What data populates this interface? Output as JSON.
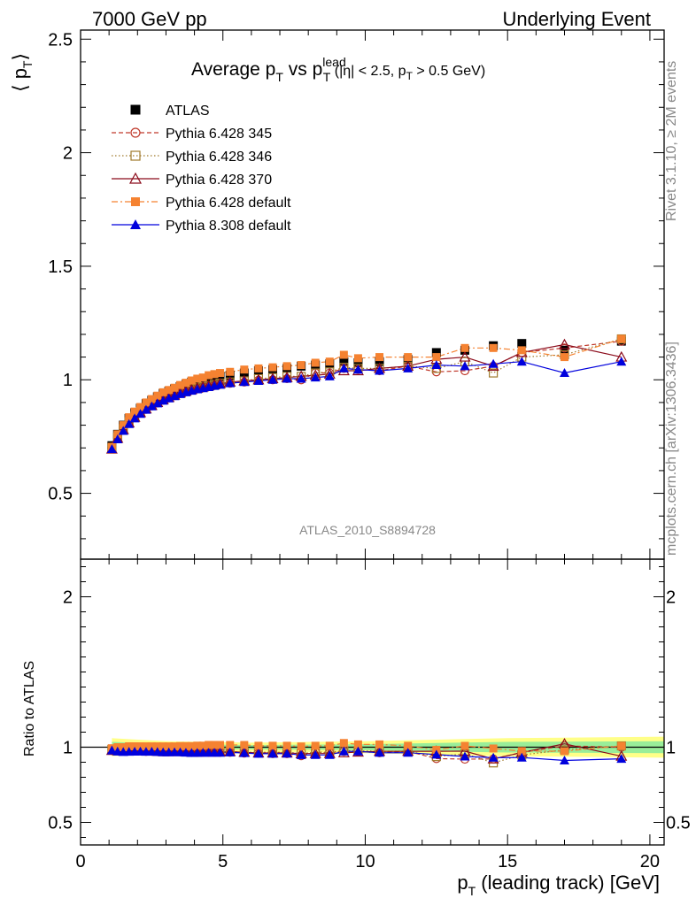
{
  "header": {
    "left": "7000 GeV pp",
    "right": "Underlying Event"
  },
  "title": {
    "main": "Average p",
    "sub1": "T",
    "vs": " vs p",
    "sup2": "lead",
    "sub2": "T",
    "cuts": " (|η| < 2.5, p",
    "cuts_sub": "T",
    "cuts_end": " > 0.5 GeV)"
  },
  "side_text": {
    "right_top": "Rivet 3.1.10, ≥ 2M events",
    "right_bottom": "mcplots.cern.ch [arXiv:1306.3436]"
  },
  "watermark": "ATLAS_2010_S8894728",
  "y_label_top": {
    "open": "⟨ p",
    "sub": "T",
    "close": "⟩"
  },
  "y_label_bottom": "Ratio to ATLAS",
  "x_label": {
    "p": "p",
    "sub": "T",
    "rest": " (leading track) [GeV]"
  },
  "chart_data": {
    "type": "scatter",
    "x_axis": {
      "range": [
        0,
        20.5
      ],
      "ticks": [
        0,
        5,
        10,
        15,
        20
      ],
      "tick_labels": [
        "0",
        "5",
        "10",
        "15",
        "20"
      ]
    },
    "main": {
      "y_range": [
        0.21,
        2.54
      ],
      "y_ticks": [
        0.5,
        1,
        1.5,
        2,
        2.5
      ],
      "y_tick_labels": [
        "0.5",
        "1",
        "1.5",
        "2",
        "2.5"
      ]
    },
    "ratio": {
      "y_range": [
        0.35,
        2.25
      ],
      "y_ticks": [
        0.5,
        1,
        2
      ],
      "y_tick_labels": [
        "0.5",
        "1",
        "2"
      ],
      "band_yellow": [
        [
          1.1,
          0.06
        ],
        [
          3,
          0.04
        ],
        [
          6,
          0.03
        ],
        [
          10,
          0.04
        ],
        [
          15,
          0.06
        ],
        [
          20.5,
          0.07
        ]
      ],
      "band_green": [
        [
          1.1,
          0.035
        ],
        [
          3,
          0.02
        ],
        [
          6,
          0.015
        ],
        [
          10,
          0.02
        ],
        [
          15,
          0.035
        ],
        [
          20.5,
          0.04
        ]
      ]
    },
    "x": [
      1.1,
      1.3,
      1.5,
      1.7,
      1.9,
      2.1,
      2.3,
      2.5,
      2.7,
      2.9,
      3.1,
      3.3,
      3.5,
      3.7,
      3.9,
      4.1,
      4.3,
      4.5,
      4.7,
      4.9,
      5.25,
      5.75,
      6.25,
      6.75,
      7.25,
      7.75,
      8.25,
      8.75,
      9.25,
      9.75,
      10.5,
      11.5,
      12.5,
      13.5,
      14.5,
      15.5,
      17.0,
      19.0
    ],
    "series": [
      {
        "name": "ATLAS",
        "color": "#000000",
        "line": "none",
        "marker": "filled-square",
        "values": [
          0.71,
          0.76,
          0.8,
          0.83,
          0.855,
          0.875,
          0.895,
          0.91,
          0.925,
          0.94,
          0.95,
          0.96,
          0.97,
          0.98,
          0.99,
          0.995,
          1.0,
          1.005,
          1.01,
          1.015,
          1.02,
          1.03,
          1.04,
          1.045,
          1.05,
          1.06,
          1.065,
          1.07,
          1.08,
          1.075,
          1.08,
          1.09,
          1.12,
          1.13,
          1.15,
          1.16,
          1.13,
          1.17
        ]
      },
      {
        "name": "Pythia 6.428 345",
        "color": "#c0392b",
        "line": "dashed",
        "marker": "open-circle",
        "values": [
          0.7,
          0.745,
          0.78,
          0.81,
          0.835,
          0.855,
          0.87,
          0.885,
          0.898,
          0.91,
          0.92,
          0.93,
          0.94,
          0.948,
          0.955,
          0.96,
          0.965,
          0.97,
          0.975,
          0.98,
          0.985,
          0.99,
          0.998,
          1.0,
          1.005,
          1.0,
          1.03,
          1.03,
          1.05,
          1.045,
          1.04,
          1.06,
          1.035,
          1.04,
          1.06,
          1.12,
          1.14,
          1.17
        ]
      },
      {
        "name": "Pythia 6.428 346",
        "color": "#a07a2c",
        "line": "dotted",
        "marker": "open-square",
        "values": [
          0.7,
          0.748,
          0.785,
          0.815,
          0.84,
          0.86,
          0.875,
          0.89,
          0.903,
          0.915,
          0.925,
          0.935,
          0.945,
          0.953,
          0.96,
          0.965,
          0.97,
          0.975,
          0.98,
          0.985,
          0.99,
          0.995,
          1.005,
          1.01,
          1.015,
          1.015,
          1.03,
          1.035,
          1.055,
          1.05,
          1.05,
          1.06,
          1.05,
          1.08,
          1.03,
          1.1,
          1.11,
          1.18
        ]
      },
      {
        "name": "Pythia 6.428 370",
        "color": "#8b0a1a",
        "line": "solid",
        "marker": "open-triangle",
        "values": [
          0.695,
          0.742,
          0.78,
          0.81,
          0.835,
          0.855,
          0.872,
          0.887,
          0.9,
          0.912,
          0.922,
          0.932,
          0.942,
          0.95,
          0.957,
          0.963,
          0.968,
          0.973,
          0.978,
          0.983,
          0.99,
          0.995,
          1.0,
          1.005,
          1.01,
          1.015,
          1.02,
          1.025,
          1.04,
          1.04,
          1.05,
          1.06,
          1.09,
          1.1,
          1.06,
          1.12,
          1.155,
          1.1
        ]
      },
      {
        "name": "Pythia 6.428 default",
        "color": "#f58231",
        "line": "dash-dot",
        "marker": "filled-square",
        "values": [
          0.705,
          0.76,
          0.8,
          0.835,
          0.86,
          0.88,
          0.9,
          0.915,
          0.93,
          0.945,
          0.955,
          0.965,
          0.977,
          0.987,
          0.997,
          1.005,
          1.01,
          1.02,
          1.025,
          1.03,
          1.035,
          1.045,
          1.05,
          1.055,
          1.06,
          1.065,
          1.075,
          1.08,
          1.11,
          1.095,
          1.1,
          1.1,
          1.1,
          1.14,
          1.14,
          1.13,
          1.1,
          1.18
        ]
      },
      {
        "name": "Pythia 8.308 default",
        "color": "#0000dd",
        "line": "solid",
        "marker": "filled-triangle",
        "values": [
          0.695,
          0.738,
          0.775,
          0.805,
          0.83,
          0.85,
          0.868,
          0.883,
          0.896,
          0.908,
          0.918,
          0.928,
          0.937,
          0.945,
          0.952,
          0.958,
          0.963,
          0.968,
          0.973,
          0.978,
          0.985,
          0.99,
          0.995,
          1.0,
          1.005,
          1.005,
          1.01,
          1.015,
          1.05,
          1.045,
          1.04,
          1.05,
          1.065,
          1.06,
          1.07,
          1.08,
          1.03,
          1.08
        ]
      }
    ]
  }
}
